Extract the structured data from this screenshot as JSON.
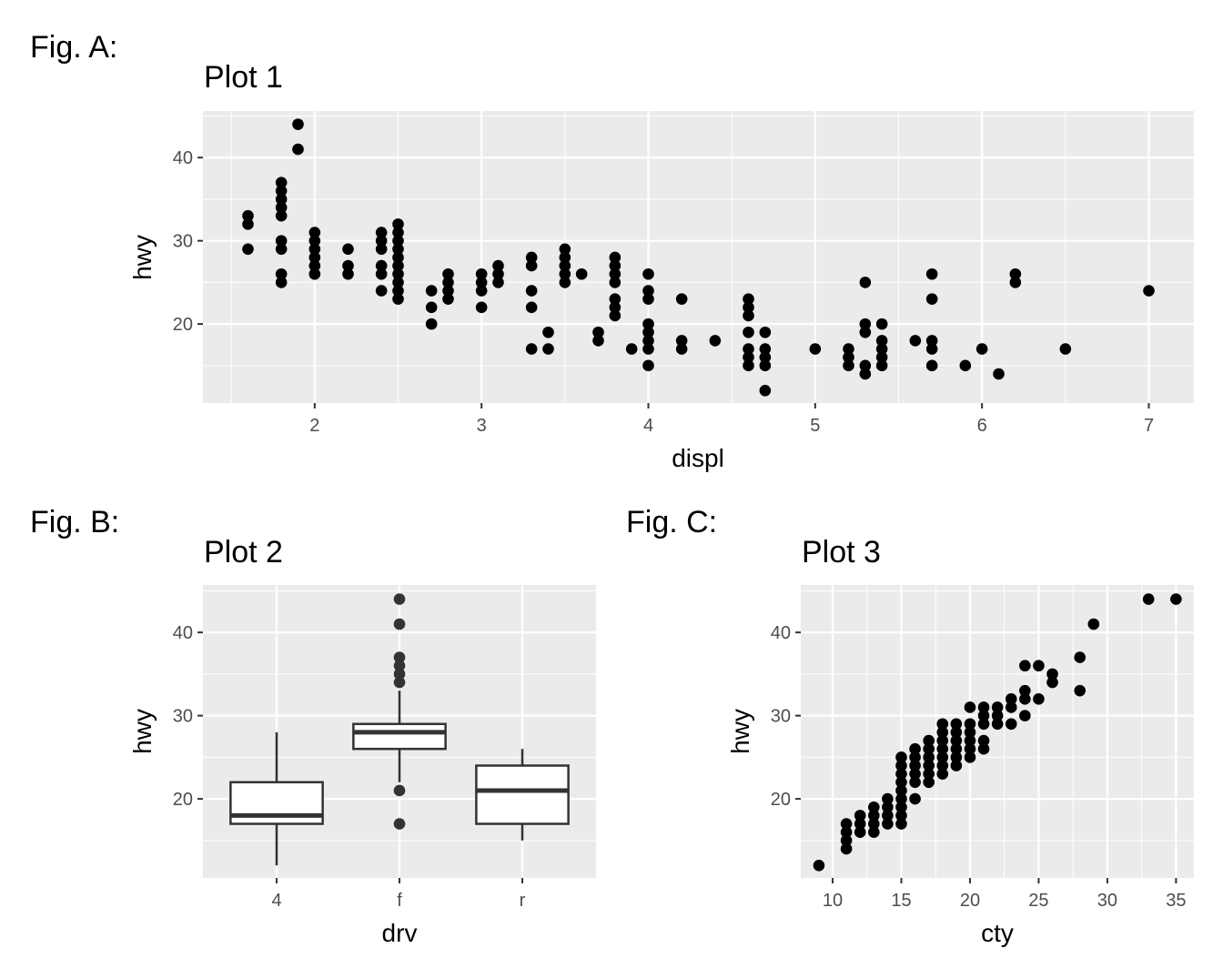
{
  "labels": {
    "fig_a": "Fig. A:",
    "fig_b": "Fig. B:",
    "fig_c": "Fig. C:"
  },
  "colors": {
    "panel": "#ebebeb",
    "grid": "#ffffff",
    "point": "#000000",
    "box_line": "#333333"
  },
  "chart_data": [
    {
      "type": "scatter",
      "title": "Plot 1",
      "xlabel": "displ",
      "ylabel": "hwy",
      "xlim": [
        1.33,
        7.27
      ],
      "ylim": [
        10.5,
        45.6
      ],
      "xticks": [
        2,
        3,
        4,
        5,
        6,
        7
      ],
      "yticks": [
        20,
        30,
        40
      ],
      "grid": true,
      "points": [
        [
          1.6,
          29
        ],
        [
          1.6,
          32
        ],
        [
          1.6,
          33
        ],
        [
          1.8,
          25
        ],
        [
          1.8,
          26
        ],
        [
          1.8,
          29
        ],
        [
          1.8,
          30
        ],
        [
          1.8,
          33
        ],
        [
          1.8,
          34
        ],
        [
          1.8,
          35
        ],
        [
          1.8,
          36
        ],
        [
          1.8,
          37
        ],
        [
          1.9,
          41
        ],
        [
          1.9,
          44
        ],
        [
          2.0,
          26
        ],
        [
          2.0,
          27
        ],
        [
          2.0,
          28
        ],
        [
          2.0,
          29
        ],
        [
          2.0,
          30
        ],
        [
          2.0,
          31
        ],
        [
          2.2,
          26
        ],
        [
          2.2,
          27
        ],
        [
          2.2,
          29
        ],
        [
          2.4,
          24
        ],
        [
          2.4,
          26
        ],
        [
          2.4,
          27
        ],
        [
          2.4,
          29
        ],
        [
          2.4,
          30
        ],
        [
          2.4,
          31
        ],
        [
          2.5,
          23
        ],
        [
          2.5,
          24
        ],
        [
          2.5,
          25
        ],
        [
          2.5,
          26
        ],
        [
          2.5,
          27
        ],
        [
          2.5,
          28
        ],
        [
          2.5,
          29
        ],
        [
          2.5,
          30
        ],
        [
          2.5,
          31
        ],
        [
          2.5,
          32
        ],
        [
          2.7,
          20
        ],
        [
          2.7,
          22
        ],
        [
          2.7,
          24
        ],
        [
          2.8,
          23
        ],
        [
          2.8,
          24
        ],
        [
          2.8,
          25
        ],
        [
          2.8,
          26
        ],
        [
          3.0,
          22
        ],
        [
          3.0,
          24
        ],
        [
          3.0,
          25
        ],
        [
          3.0,
          26
        ],
        [
          3.1,
          25
        ],
        [
          3.1,
          26
        ],
        [
          3.1,
          27
        ],
        [
          3.3,
          17
        ],
        [
          3.3,
          22
        ],
        [
          3.3,
          24
        ],
        [
          3.3,
          27
        ],
        [
          3.3,
          28
        ],
        [
          3.4,
          17
        ],
        [
          3.4,
          19
        ],
        [
          3.5,
          25
        ],
        [
          3.5,
          26
        ],
        [
          3.5,
          27
        ],
        [
          3.5,
          28
        ],
        [
          3.5,
          29
        ],
        [
          3.6,
          26
        ],
        [
          3.7,
          18
        ],
        [
          3.7,
          19
        ],
        [
          3.8,
          21
        ],
        [
          3.8,
          22
        ],
        [
          3.8,
          23
        ],
        [
          3.8,
          25
        ],
        [
          3.8,
          26
        ],
        [
          3.8,
          27
        ],
        [
          3.8,
          28
        ],
        [
          3.9,
          17
        ],
        [
          4.0,
          15
        ],
        [
          4.0,
          17
        ],
        [
          4.0,
          18
        ],
        [
          4.0,
          19
        ],
        [
          4.0,
          20
        ],
        [
          4.0,
          23
        ],
        [
          4.0,
          24
        ],
        [
          4.0,
          26
        ],
        [
          4.2,
          17
        ],
        [
          4.2,
          18
        ],
        [
          4.2,
          23
        ],
        [
          4.4,
          18
        ],
        [
          4.6,
          15
        ],
        [
          4.6,
          16
        ],
        [
          4.6,
          17
        ],
        [
          4.6,
          19
        ],
        [
          4.6,
          21
        ],
        [
          4.6,
          22
        ],
        [
          4.6,
          23
        ],
        [
          4.7,
          12
        ],
        [
          4.7,
          15
        ],
        [
          4.7,
          16
        ],
        [
          4.7,
          17
        ],
        [
          4.7,
          19
        ],
        [
          5.0,
          17
        ],
        [
          5.2,
          15
        ],
        [
          5.2,
          16
        ],
        [
          5.2,
          17
        ],
        [
          5.3,
          14
        ],
        [
          5.3,
          15
        ],
        [
          5.3,
          19
        ],
        [
          5.3,
          20
        ],
        [
          5.3,
          25
        ],
        [
          5.4,
          15
        ],
        [
          5.4,
          16
        ],
        [
          5.4,
          17
        ],
        [
          5.4,
          18
        ],
        [
          5.4,
          20
        ],
        [
          5.6,
          18
        ],
        [
          5.7,
          15
        ],
        [
          5.7,
          17
        ],
        [
          5.7,
          18
        ],
        [
          5.7,
          23
        ],
        [
          5.7,
          26
        ],
        [
          5.9,
          15
        ],
        [
          6.0,
          17
        ],
        [
          6.1,
          14
        ],
        [
          6.2,
          25
        ],
        [
          6.2,
          26
        ],
        [
          6.5,
          17
        ],
        [
          7.0,
          24
        ]
      ]
    },
    {
      "type": "box",
      "title": "Plot 2",
      "xlabel": "drv",
      "ylabel": "hwy",
      "ylim": [
        10.5,
        45.7
      ],
      "yticks": [
        20,
        30,
        40
      ],
      "categories": [
        "4",
        "f",
        "r"
      ],
      "boxes": [
        {
          "lower_whisker": 12,
          "q1": 17,
          "median": 18,
          "q3": 22,
          "upper_whisker": 28,
          "outliers": []
        },
        {
          "lower_whisker": 22,
          "q1": 26,
          "median": 28,
          "q3": 29,
          "upper_whisker": 33,
          "outliers": [
            17,
            21,
            34,
            35,
            36,
            37,
            41,
            44
          ]
        },
        {
          "lower_whisker": 15,
          "q1": 17,
          "median": 21,
          "q3": 24,
          "upper_whisker": 26,
          "outliers": []
        }
      ]
    },
    {
      "type": "scatter",
      "title": "Plot 3",
      "xlabel": "cty",
      "ylabel": "hwy",
      "xlim": [
        7.68,
        36.3
      ],
      "ylim": [
        10.5,
        45.7
      ],
      "xticks": [
        10,
        15,
        20,
        25,
        30,
        35
      ],
      "yticks": [
        20,
        30,
        40
      ],
      "grid": true,
      "points": [
        [
          9,
          12
        ],
        [
          11,
          14
        ],
        [
          11,
          15
        ],
        [
          11,
          16
        ],
        [
          11,
          17
        ],
        [
          12,
          16
        ],
        [
          12,
          17
        ],
        [
          12,
          18
        ],
        [
          13,
          16
        ],
        [
          13,
          17
        ],
        [
          13,
          18
        ],
        [
          13,
          19
        ],
        [
          14,
          17
        ],
        [
          14,
          18
        ],
        [
          14,
          19
        ],
        [
          14,
          20
        ],
        [
          15,
          17
        ],
        [
          15,
          18
        ],
        [
          15,
          19
        ],
        [
          15,
          20
        ],
        [
          15,
          21
        ],
        [
          15,
          22
        ],
        [
          15,
          23
        ],
        [
          15,
          24
        ],
        [
          15,
          25
        ],
        [
          16,
          20
        ],
        [
          16,
          22
        ],
        [
          16,
          23
        ],
        [
          16,
          24
        ],
        [
          16,
          25
        ],
        [
          16,
          26
        ],
        [
          17,
          22
        ],
        [
          17,
          23
        ],
        [
          17,
          24
        ],
        [
          17,
          25
        ],
        [
          17,
          26
        ],
        [
          17,
          27
        ],
        [
          18,
          23
        ],
        [
          18,
          24
        ],
        [
          18,
          25
        ],
        [
          18,
          26
        ],
        [
          18,
          27
        ],
        [
          18,
          28
        ],
        [
          18,
          29
        ],
        [
          19,
          24
        ],
        [
          19,
          25
        ],
        [
          19,
          26
        ],
        [
          19,
          27
        ],
        [
          19,
          28
        ],
        [
          19,
          29
        ],
        [
          20,
          25
        ],
        [
          20,
          26
        ],
        [
          20,
          27
        ],
        [
          20,
          28
        ],
        [
          20,
          29
        ],
        [
          20,
          31
        ],
        [
          21,
          26
        ],
        [
          21,
          27
        ],
        [
          21,
          29
        ],
        [
          21,
          30
        ],
        [
          21,
          31
        ],
        [
          22,
          29
        ],
        [
          22,
          30
        ],
        [
          22,
          31
        ],
        [
          23,
          29
        ],
        [
          23,
          31
        ],
        [
          23,
          32
        ],
        [
          24,
          30
        ],
        [
          24,
          32
        ],
        [
          24,
          33
        ],
        [
          24,
          36
        ],
        [
          25,
          32
        ],
        [
          25,
          36
        ],
        [
          26,
          34
        ],
        [
          26,
          35
        ],
        [
          28,
          33
        ],
        [
          28,
          37
        ],
        [
          29,
          41
        ],
        [
          33,
          44
        ],
        [
          35,
          44
        ]
      ]
    }
  ]
}
